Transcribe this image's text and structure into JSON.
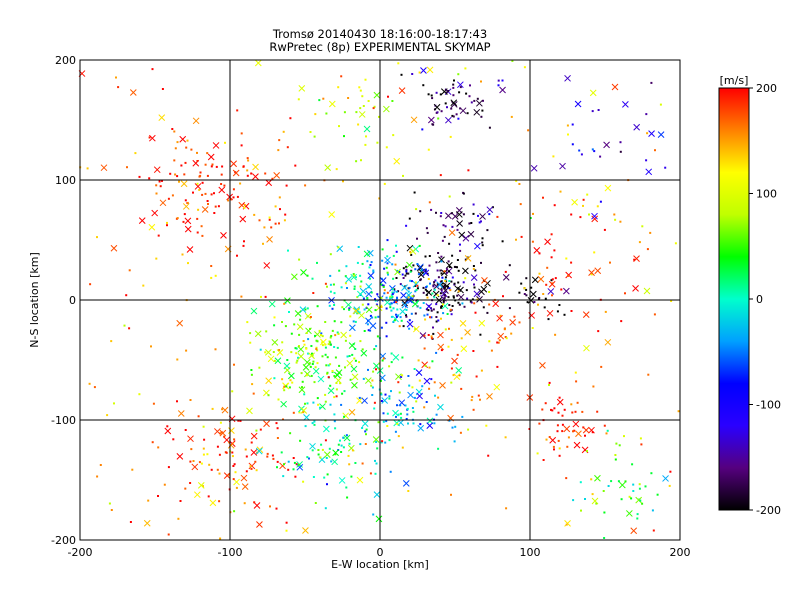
{
  "chart_data": {
    "type": "scatter",
    "title": "Tromsø 20140430 18:16:00-18:17:43",
    "subtitle": "RwPretec (8p) EXPERIMENTAL SKYMAP",
    "xlabel": "E-W location [km]",
    "ylabel": "N-S location [km]",
    "xlim": [
      -200,
      200
    ],
    "ylim": [
      -200,
      200
    ],
    "xticks": [
      "-200",
      "-100",
      "0",
      "100",
      "200"
    ],
    "yticks": [
      "-200",
      "-100",
      "0",
      "100",
      "200"
    ],
    "grid": true,
    "marker_types": [
      "dot",
      "x"
    ],
    "colorbar": {
      "label": "[m/s]",
      "range": [
        -200,
        200
      ],
      "ticks": [
        "200",
        "100",
        "0",
        "-100",
        "-200"
      ],
      "colormap": [
        "#000000",
        "#55007f",
        "#2a00ff",
        "#0000ff",
        "#00a0ff",
        "#00ffcc",
        "#00ff00",
        "#c0ff00",
        "#ffff00",
        "#ff8000",
        "#ff0000"
      ]
    },
    "clusters": [
      {
        "x": 40,
        "y": 10,
        "spread": 25,
        "count": 160,
        "velocity": -190
      },
      {
        "x": 50,
        "y": 165,
        "spread": 22,
        "count": 60,
        "velocity": -170
      },
      {
        "x": 50,
        "y": 60,
        "spread": 25,
        "count": 50,
        "velocity": -180
      },
      {
        "x": 105,
        "y": 0,
        "spread": 15,
        "count": 25,
        "velocity": -200
      },
      {
        "x": 10,
        "y": 5,
        "spread": 30,
        "count": 130,
        "velocity": -60
      },
      {
        "x": -10,
        "y": 10,
        "spread": 35,
        "count": 110,
        "velocity": 20
      },
      {
        "x": -40,
        "y": -50,
        "spread": 40,
        "count": 200,
        "velocity": 60
      },
      {
        "x": -110,
        "y": 90,
        "spread": 45,
        "count": 140,
        "velocity": 190
      },
      {
        "x": -100,
        "y": -130,
        "spread": 40,
        "count": 110,
        "velocity": 180
      },
      {
        "x": -30,
        "y": -120,
        "spread": 35,
        "count": 90,
        "velocity": 10
      },
      {
        "x": 20,
        "y": -90,
        "spread": 30,
        "count": 70,
        "velocity": -40
      },
      {
        "x": 125,
        "y": -105,
        "spread": 20,
        "count": 45,
        "velocity": 190
      },
      {
        "x": 160,
        "y": -160,
        "spread": 30,
        "count": 45,
        "velocity": 40
      },
      {
        "x": 130,
        "y": 20,
        "spread": 50,
        "count": 50,
        "velocity": 195
      },
      {
        "x": 40,
        "y": -30,
        "spread": 45,
        "count": 90,
        "velocity": 150
      },
      {
        "x": -15,
        "y": 160,
        "spread": 35,
        "count": 40,
        "velocity": 90
      },
      {
        "x": 150,
        "y": 130,
        "spread": 50,
        "count": 30,
        "velocity": -120
      },
      {
        "x": 0,
        "y": 0,
        "spread": 200,
        "count": 220,
        "velocity": 150
      }
    ]
  }
}
